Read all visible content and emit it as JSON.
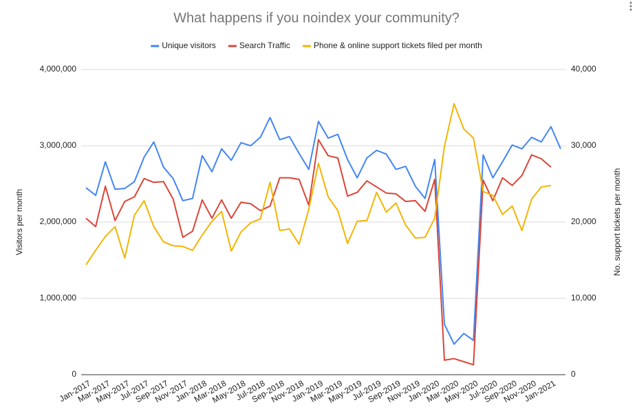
{
  "chart_data": {
    "type": "line",
    "title": "What happens if you noindex your community?",
    "y_label": "Visitors per month",
    "y2_label": "No. support tickets per month",
    "categories": [
      "Jan-2017",
      null,
      "Mar-2017",
      null,
      "May-2017",
      null,
      "Jul-2017",
      null,
      "Sep-2017",
      null,
      "Nov-2017",
      null,
      "Jan-2018",
      null,
      "Mar-2018",
      null,
      "May-2018",
      null,
      "Jul-2018",
      null,
      "Sep-2018",
      null,
      "Nov-2018",
      null,
      "Jan-2019",
      null,
      "Mar-2019",
      null,
      "May-2019",
      null,
      "Jul-2019",
      null,
      "Sep-2019",
      null,
      "Nov-2019",
      null,
      "Jan-2020",
      null,
      "Mar-2020",
      null,
      "May-2020",
      null,
      "Jul-2020",
      null,
      "Sep-2020",
      null,
      "Nov-2020",
      null,
      "Jan-2021",
      null
    ],
    "series": [
      {
        "name": "Unique visitors",
        "color": "#4285f4",
        "values": [
          2450000,
          2350000,
          2790000,
          2430000,
          2440000,
          2530000,
          2850000,
          3050000,
          2720000,
          2570000,
          2280000,
          2310000,
          2870000,
          2660000,
          2960000,
          2810000,
          3040000,
          3000000,
          3110000,
          3370000,
          3080000,
          3120000,
          2900000,
          2690000,
          3320000,
          3100000,
          3150000,
          2820000,
          2580000,
          2840000,
          2940000,
          2890000,
          2690000,
          2730000,
          2470000,
          2310000,
          2820000,
          660000,
          400000,
          540000,
          450000,
          2880000,
          2580000,
          2790000,
          3010000,
          2960000,
          3110000,
          3050000,
          3250000,
          2960000
        ]
      },
      {
        "name": "Search Traffic",
        "color": "#db4437",
        "values": [
          2050000,
          1940000,
          2470000,
          2020000,
          2270000,
          2330000,
          2570000,
          2520000,
          2530000,
          2300000,
          1800000,
          1880000,
          2290000,
          2050000,
          2290000,
          2050000,
          2260000,
          2240000,
          2150000,
          2210000,
          2580000,
          2580000,
          2560000,
          2220000,
          3080000,
          2870000,
          2840000,
          2340000,
          2390000,
          2540000,
          2460000,
          2380000,
          2370000,
          2270000,
          2280000,
          2140000,
          2560000,
          190000,
          210000,
          170000,
          130000,
          2550000,
          2280000,
          2580000,
          2480000,
          2610000,
          2880000,
          2830000,
          2720000,
          null
        ]
      },
      {
        "name": "Phone & online support tickets filed per month",
        "color": "#f4b400",
        "axis": "y2",
        "values": [
          14400,
          16300,
          18100,
          19400,
          15300,
          20900,
          22800,
          19400,
          17400,
          16900,
          16800,
          16300,
          18300,
          20100,
          21400,
          16200,
          18700,
          19900,
          20400,
          25200,
          18900,
          19100,
          17100,
          21700,
          27700,
          23300,
          21500,
          17200,
          20100,
          20200,
          23900,
          21300,
          22500,
          19600,
          17900,
          18000,
          20500,
          29900,
          35500,
          32200,
          31000,
          24000,
          23500,
          21000,
          22100,
          18900,
          23000,
          24600,
          24800,
          null
        ]
      }
    ],
    "ylim": [
      0,
      4000000
    ],
    "yticks": [
      0,
      {
        "value": 1000000,
        "label": "1,000,000"
      },
      {
        "value": 2000000,
        "label": "2,000,000"
      },
      {
        "value": 3000000,
        "label": "3,000,000"
      },
      {
        "value": 4000000,
        "label": "4,000,000"
      }
    ],
    "y2lim": [
      0,
      40000
    ],
    "y2ticks": [
      0,
      {
        "value": 10000,
        "label": "10,000"
      },
      {
        "value": 20000,
        "label": "20,000"
      },
      {
        "value": 30000,
        "label": "30,000"
      },
      {
        "value": 40000,
        "label": "40,000"
      }
    ],
    "grid": true,
    "legend": "top"
  }
}
